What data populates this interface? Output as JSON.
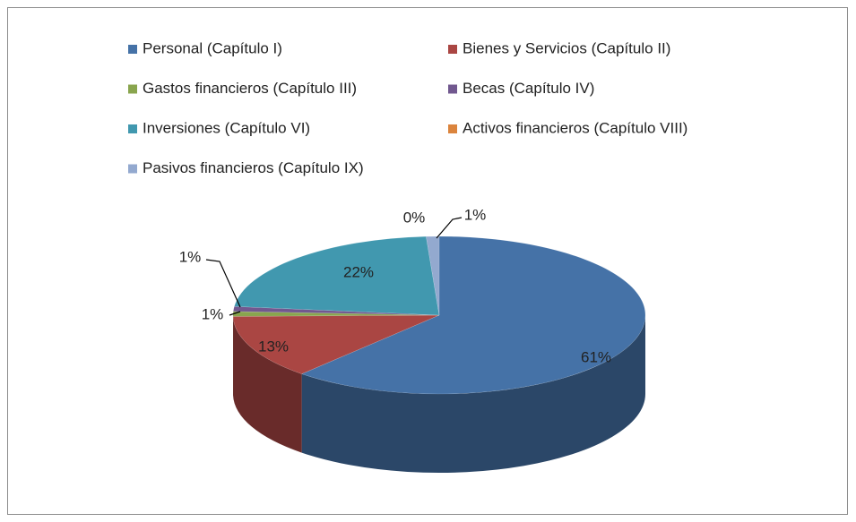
{
  "chart_data": {
    "type": "pie",
    "categories": [
      "Personal (Capítulo I)",
      "Bienes y Servicios (Capítulo II)",
      "Gastos financieros (Capítulo III)",
      "Becas (Capítulo IV)",
      "Inversiones (Capítulo VI)",
      "Activos financieros (Capítulo VIII)",
      "Pasivos financieros (Capítulo IX)"
    ],
    "values": [
      61,
      13,
      1,
      1,
      22,
      0,
      1
    ],
    "value_labels": [
      "61%",
      "13%",
      "1%",
      "1%",
      "22%",
      "0%",
      "1%"
    ],
    "colors": [
      "#4572a7",
      "#aa4643",
      "#89a54e",
      "#71588f",
      "#4198af",
      "#db843d",
      "#93a9cf"
    ],
    "legend": "top"
  }
}
